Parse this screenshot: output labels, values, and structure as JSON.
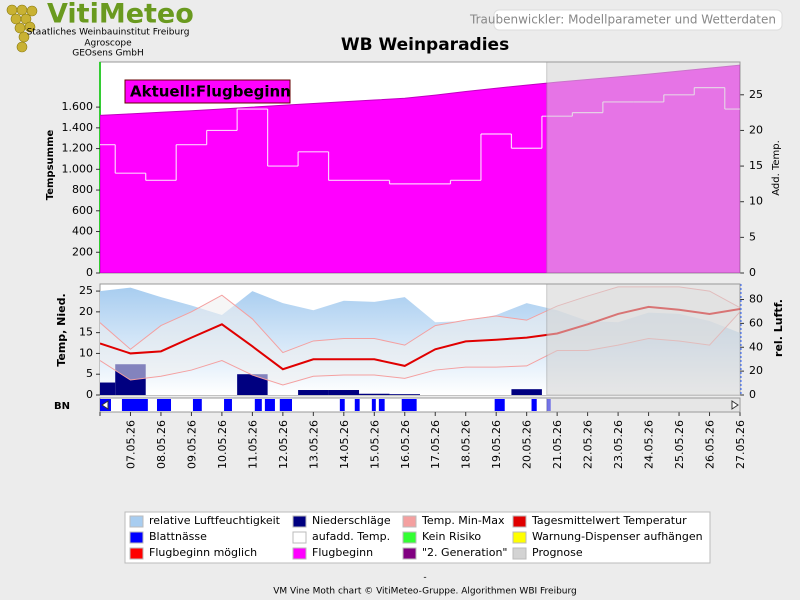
{
  "header": {
    "logo": "VitiMeteo",
    "institutions": [
      "Staatliches Weinbauinstitut Freiburg",
      "Agroscope",
      "GEOsens GmbH"
    ],
    "page_title": "Traubenwickler: Modellparameter und Wetterdaten"
  },
  "chart_data": [
    {
      "type": "area",
      "title": "WB Weinparadies",
      "annotation": "Aktuell:Flugbeginn",
      "ylabel": "Tempsumme",
      "y2label": "Add. Temp.",
      "ylim": [
        0,
        2035
      ],
      "yticks": [
        0,
        200,
        400,
        600,
        800,
        {
          "value": 1000,
          "label": "1.000"
        },
        {
          "value": 1200,
          "label": "1.200"
        },
        {
          "value": 1400,
          "label": "1.400"
        },
        {
          "value": 1600,
          "label": "1.600"
        }
      ],
      "y2lim": [
        0,
        29.6
      ],
      "y2ticks": [
        0,
        5,
        10,
        15,
        20,
        25
      ],
      "series": [
        {
          "name": "Flugbeginn",
          "color": "#ff00ff",
          "values": [
            1520,
            1535,
            1550,
            1565,
            1582,
            1600,
            1618,
            1635,
            1652,
            1668,
            1685,
            1715,
            1750,
            1782,
            1812,
            1841,
            1866,
            1892,
            1918,
            1947,
            1976,
            2005
          ]
        },
        {
          "name": "aufadd. Temp.",
          "color": "#ffffff",
          "axis": "y2",
          "values": [
            18,
            14,
            13,
            18,
            20,
            23,
            15,
            17,
            13,
            13,
            12.5,
            12.5,
            13,
            19.5,
            17.5,
            22,
            22.5,
            24,
            24,
            25,
            26,
            23
          ]
        }
      ],
      "forecast_from": 14.66
    },
    {
      "type": "combo",
      "ylabel": "Temp, Nied.",
      "y2label": "rel. Luftf.",
      "categories": [
        null,
        "07.05.26",
        "08.05.26",
        "09.05.26",
        "10.05.26",
        "11.05.26",
        "12.05.26",
        "13.05.26",
        "14.05.26",
        "15.05.26",
        "16.05.26",
        "17.05.26",
        "18.05.26",
        "19.05.26",
        "20.05.26",
        "21.05.26",
        "22.05.26",
        "23.05.26",
        "24.05.26",
        "25.05.26",
        "26.05.26",
        "27.05.26"
      ],
      "ylim": [
        0,
        26.7
      ],
      "yticks": [
        0,
        5,
        10,
        15,
        20,
        25
      ],
      "y2lim": [
        0,
        93
      ],
      "y2ticks": [
        0,
        20,
        40,
        60,
        80
      ],
      "series": [
        {
          "name": "relative Luftfeuchtigkeit",
          "color": "#a8cdf0",
          "axis": "y2",
          "values": [
            87,
            90,
            82,
            75,
            67,
            87,
            77,
            71,
            79,
            78,
            82,
            61,
            62,
            67,
            77,
            71,
            62,
            61,
            69,
            68,
            62,
            52
          ]
        },
        {
          "name": "Niederschläge",
          "color": "#000080",
          "values": [
            3,
            7.4,
            0,
            0,
            0,
            5,
            0,
            1.2,
            1.2,
            0.3,
            0.2,
            0,
            0,
            0,
            1.4,
            0,
            0,
            0,
            0,
            0,
            0,
            0
          ]
        },
        {
          "name": "Temp. Min-Max",
          "color": "#f4a0a0",
          "low": [
            8.3,
            3.6,
            4.5,
            6,
            8.3,
            4.8,
            2.4,
            4.5,
            4.8,
            4.8,
            4,
            6,
            6.7,
            6.7,
            7,
            10.7,
            10.7,
            12,
            13.6,
            13,
            12,
            20
          ],
          "high": [
            17.4,
            11,
            16.7,
            20,
            24,
            18.3,
            10.2,
            13,
            13.6,
            13.6,
            12,
            16.7,
            18,
            19,
            18,
            21.4,
            23.8,
            26,
            26,
            26,
            25,
            21
          ]
        },
        {
          "name": "Tagesmittelwert Temperatur",
          "color": "#e00000",
          "values": [
            12.4,
            10,
            10.5,
            13.8,
            17,
            11.7,
            6.2,
            8.6,
            8.6,
            8.6,
            7,
            11,
            12.9,
            13.3,
            13.8,
            14.8,
            17,
            19.5,
            21.2,
            20.5,
            19.5,
            20.7
          ]
        }
      ],
      "bn": {
        "label": "BN",
        "name": "Blattnässe",
        "color": "#0000ff",
        "intervals": [
          [
            0,
            0.36
          ],
          [
            0.72,
            1.57
          ],
          [
            1.87,
            2.33
          ],
          [
            3.05,
            3.34
          ],
          [
            4.07,
            4.33
          ],
          [
            5.08,
            5.31
          ],
          [
            5.41,
            5.74
          ],
          [
            5.9,
            6.3
          ],
          [
            7.87,
            8.03
          ],
          [
            8.36,
            8.52
          ],
          [
            8.92,
            9.05
          ],
          [
            9.15,
            9.34
          ],
          [
            9.9,
            10.39
          ],
          [
            12.95,
            13.28
          ],
          [
            14.16,
            14.33
          ],
          [
            14.66,
            14.79
          ]
        ]
      },
      "forecast_from": 14.66
    }
  ],
  "legend_extra": [
    {
      "name": "Kein Risiko",
      "color": "#33ff33"
    },
    {
      "name": "Warnung-Dispenser aufhängen",
      "color": "#ffff00"
    },
    {
      "name": "Flugbeginn möglich",
      "color": "#ff0000"
    },
    {
      "name": "\"2. Generation\"",
      "color": "#800080"
    },
    {
      "name": "Prognose",
      "color": "#d3d3d3"
    }
  ],
  "footer": {
    "dash": "-",
    "credit": "VM Vine Moth chart © VitiMeteo-Gruppe. Algorithmen WBI Freiburg"
  }
}
